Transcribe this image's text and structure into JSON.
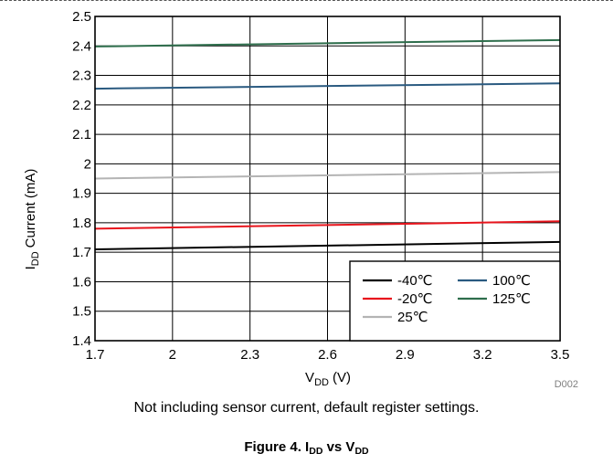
{
  "chart_data": {
    "type": "line",
    "title": "",
    "xlabel": "V",
    "xlabel_sub": "DD",
    "xlabel_unit": "(V)",
    "ylabel": "I",
    "ylabel_sub": "DD",
    "ylabel_rest": "Current (mA)",
    "xlim": [
      1.7,
      3.5
    ],
    "ylim": [
      1.4,
      2.5
    ],
    "x_ticks": [
      1.7,
      2,
      2.3,
      2.6,
      2.9,
      3.2,
      3.5
    ],
    "x_tick_labels": [
      "1.7",
      "2",
      "2.3",
      "2.6",
      "2.9",
      "3.2",
      "3.5"
    ],
    "y_ticks": [
      1.4,
      1.5,
      1.6,
      1.7,
      1.8,
      1.9,
      2,
      2.1,
      2.2,
      2.3,
      2.4,
      2.5
    ],
    "y_tick_labels": [
      "1.4",
      "1.5",
      "1.6",
      "1.7",
      "1.8",
      "1.9",
      "2",
      "2.1",
      "2.2",
      "2.3",
      "2.4",
      "2.5"
    ],
    "grid": true,
    "legend_position": "bottom-right",
    "x": [
      1.7,
      3.5
    ],
    "series": [
      {
        "name": "-40℃",
        "color": "#000000",
        "values": [
          1.71,
          1.735
        ]
      },
      {
        "name": "-20℃",
        "color": "#e8141c",
        "values": [
          1.78,
          1.805
        ]
      },
      {
        "name": "25℃",
        "color": "#b4b4b4",
        "values": [
          1.95,
          1.972
        ]
      },
      {
        "name": "100℃",
        "color": "#2a5a80",
        "values": [
          2.255,
          2.273
        ]
      },
      {
        "name": "125℃",
        "color": "#2e6e4c",
        "values": [
          2.398,
          2.42
        ]
      }
    ],
    "watermark": "D002"
  },
  "caption": {
    "note": "Not including sensor current, default register settings.",
    "figure_prefix": "Figure 4. I",
    "figure_sub1": "DD",
    "figure_mid": " vs V",
    "figure_sub2": "DD"
  }
}
